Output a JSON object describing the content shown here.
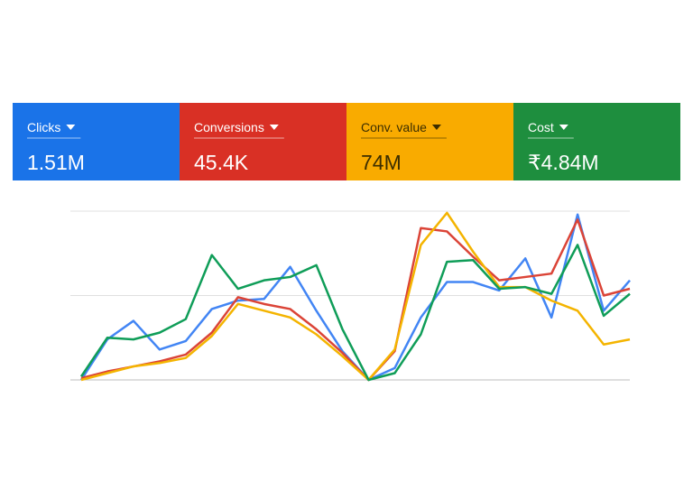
{
  "chart_data": {
    "type": "line",
    "series": [
      {
        "name": "Clicks",
        "total": "1.51M",
        "color": "#4285f4",
        "card_color": "#1a73e8",
        "text_color": "#ffffff",
        "values": [
          0,
          24,
          35,
          18,
          23,
          42,
          47,
          48,
          67,
          41,
          17,
          0,
          7,
          37,
          58,
          58,
          53,
          72,
          37,
          98,
          41,
          59
        ]
      },
      {
        "name": "Conversions",
        "total": "45.4K",
        "color": "#db4437",
        "card_color": "#d93025",
        "text_color": "#ffffff",
        "values": [
          1,
          5,
          8,
          11,
          15,
          28,
          49,
          45,
          42,
          30,
          16,
          0,
          17,
          90,
          88,
          73,
          59,
          61,
          63,
          95,
          50,
          54
        ]
      },
      {
        "name": "Conv. value",
        "total": "74M",
        "color": "#f4b400",
        "card_color": "#f9ab00",
        "text_color": "#3c2e00",
        "values": [
          0,
          4,
          8,
          10,
          13,
          26,
          45,
          41,
          37,
          27,
          14,
          0,
          18,
          80,
          99,
          76,
          55,
          55,
          47,
          41,
          21,
          24
        ]
      },
      {
        "name": "Cost",
        "total": "₹4.84M",
        "color": "#0f9d58",
        "card_color": "#1e8e3e",
        "text_color": "#ffffff",
        "values": [
          2,
          25,
          24,
          28,
          36,
          74,
          54,
          59,
          61,
          68,
          30,
          0,
          4,
          27,
          70,
          71,
          54,
          55,
          51,
          80,
          38,
          51
        ]
      }
    ],
    "ylim": [
      0,
      100
    ],
    "yticks": [
      0,
      50,
      100
    ],
    "grid": true
  }
}
